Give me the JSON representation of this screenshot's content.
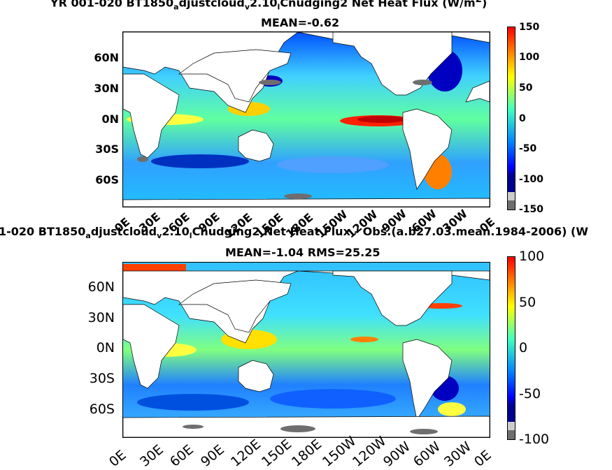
{
  "figure": {
    "colormap": [
      "#00008f",
      "#0000ff",
      "#0080ff",
      "#00ffff",
      "#80ff80",
      "#ffff00",
      "#ff8000",
      "#ff0000",
      "#800000"
    ],
    "land_color": "#ffffff",
    "missing_color": "#6e6e6e",
    "lat_labels": [
      "60N",
      "30N",
      "0N",
      "30S",
      "60S"
    ],
    "lon_labels": [
      "0E",
      "30E",
      "60E",
      "90E",
      "120E",
      "150E",
      "180E",
      "150W",
      "120W",
      "90W",
      "60W",
      "30W",
      "0E"
    ]
  },
  "panels": [
    {
      "title_prefix": "YR 001-020 BT1850",
      "title_sub1": "a",
      "title_mid1": "djustcloud",
      "title_sub2": "v",
      "title_mid2": "2.10",
      "title_sub3": "l",
      "title_rest": "Cnudging2  Net Heat Flux (W/m",
      "title_sup": "2",
      "title_end": ")",
      "stats": "MEAN=-0.62",
      "colorbar_ticks": [
        "150",
        "100",
        "50",
        "0",
        "-50",
        "-100",
        "-150"
      ],
      "colorbar_range": [
        -150,
        150
      ]
    },
    {
      "title_prefix": "1-020 BT1850",
      "title_sub1": "a",
      "title_mid1": "djustcloud",
      "title_sub2": "v",
      "title_mid2": "2.10",
      "title_sub3": "l",
      "title_rest": "Cnudging2  Net Heat Flux - Obs.(a.b27.03.mean.1984-2006) (W",
      "title_sup": "",
      "title_end": "",
      "stats": "MEAN=-1.04 RMS=25.25",
      "colorbar_ticks": [
        "100",
        "50",
        "0",
        "-50",
        "-100"
      ],
      "colorbar_range": [
        -100,
        100
      ]
    }
  ]
}
